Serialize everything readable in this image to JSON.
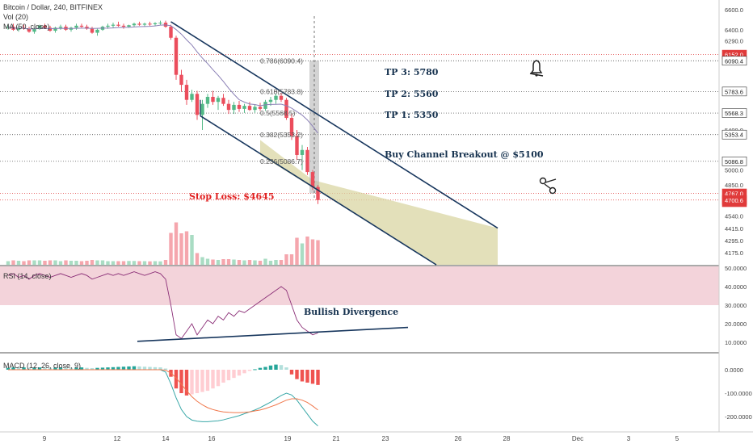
{
  "title": "Bitcoin / Dollar, 240, BITFINEX",
  "legend": {
    "vol": "Vol (20)",
    "ma": "MA (50, close)",
    "rsi": "RSI (14, close)",
    "macd": "MACD (12, 26, close, 9)"
  },
  "colors": {
    "up": "#53b987",
    "down": "#eb4d5c",
    "ma": "#8a7fb5",
    "channel": "#17365d",
    "fill": "#d9d6a3",
    "rsi_band": "#f2cfd6",
    "rsi_line": "#8b2f77",
    "macd_line": "#3aa8a8",
    "signal_line": "#f0774b"
  },
  "price_axis": {
    "ticks": [
      "6600.0",
      "6400.0",
      "6290.0",
      "6152.0",
      "6090.4",
      "5783.6",
      "5568.3",
      "5400.0",
      "5353.4",
      "5086.8",
      "5000.0",
      "4850.0",
      "4767.0",
      "32:47",
      "4700.6",
      "4540.0",
      "4415.0",
      "4295.0",
      "4175.0"
    ]
  },
  "rsi_axis": {
    "ticks": [
      "50.0000",
      "40.0000",
      "30.0000",
      "20.0000",
      "10.0000"
    ]
  },
  "macd_axis": {
    "ticks": [
      "0.0000",
      "-100.0000",
      "-200.0000"
    ]
  },
  "x_axis": {
    "ticks": [
      "9",
      "12",
      "14",
      "16",
      "19",
      "21",
      "23",
      "26",
      "28",
      "Dec",
      "3",
      "5"
    ]
  },
  "annotations": {
    "tp3": "TP 3: 5780",
    "tp2": "TP 2: 5560",
    "tp1": "TP 1: 5350",
    "breakout": "Buy Channel Breakout @ $5100",
    "stop": "Stop Loss: $4645",
    "divergence": "Bullish Divergence"
  },
  "fib_levels": [
    {
      "label": "0.786(6090.4)",
      "price": 6090.4
    },
    {
      "label": "0.618(5783.8)",
      "price": 5783.8
    },
    {
      "label": "0.5(5568.5)",
      "price": 5568.5
    },
    {
      "label": "0.382(5353.2)",
      "price": 5353.2
    },
    {
      "label": "0.236(5086.7)",
      "price": 5086.7
    }
  ],
  "chart_data": [
    {
      "type": "candlestick",
      "title": "Bitcoin / Dollar, 240, BITFINEX",
      "ylim": [
        4100,
        6700
      ],
      "horizontal_levels": [
        6152.0,
        6090.4,
        5783.6,
        5568.3,
        5353.4,
        5086.8,
        4767.0,
        4700.6
      ],
      "candles": [
        [
          6420,
          6450,
          6400,
          6430
        ],
        [
          6430,
          6460,
          6390,
          6400
        ],
        [
          6400,
          6440,
          6380,
          6420
        ],
        [
          6420,
          6450,
          6400,
          6410
        ],
        [
          6410,
          6430,
          6370,
          6380
        ],
        [
          6380,
          6420,
          6360,
          6410
        ],
        [
          6410,
          6450,
          6400,
          6440
        ],
        [
          6440,
          6460,
          6410,
          6420
        ],
        [
          6420,
          6440,
          6380,
          6390
        ],
        [
          6390,
          6430,
          6370,
          6420
        ],
        [
          6420,
          6450,
          6400,
          6430
        ],
        [
          6430,
          6450,
          6390,
          6400
        ],
        [
          6400,
          6430,
          6380,
          6420
        ],
        [
          6420,
          6460,
          6400,
          6440
        ],
        [
          6440,
          6460,
          6420,
          6430
        ],
        [
          6430,
          6450,
          6400,
          6410
        ],
        [
          6410,
          6430,
          6360,
          6370
        ],
        [
          6370,
          6410,
          6340,
          6400
        ],
        [
          6400,
          6440,
          6390,
          6430
        ],
        [
          6430,
          6460,
          6410,
          6440
        ],
        [
          6440,
          6470,
          6420,
          6450
        ],
        [
          6450,
          6480,
          6430,
          6440
        ],
        [
          6440,
          6460,
          6410,
          6430
        ],
        [
          6430,
          6450,
          6420,
          6445
        ],
        [
          6445,
          6470,
          6430,
          6460
        ],
        [
          6460,
          6480,
          6440,
          6450
        ],
        [
          6450,
          6470,
          6430,
          6460
        ],
        [
          6460,
          6480,
          6440,
          6455
        ],
        [
          6455,
          6475,
          6440,
          6465
        ],
        [
          6465,
          6490,
          6450,
          6470
        ],
        [
          6470,
          6490,
          6420,
          6430
        ],
        [
          6430,
          6450,
          6300,
          6320
        ],
        [
          6320,
          6340,
          5900,
          5950
        ],
        [
          5950,
          6000,
          5780,
          5850
        ],
        [
          5850,
          5900,
          5650,
          5700
        ],
        [
          5700,
          5800,
          5680,
          5760
        ],
        [
          5760,
          5790,
          5500,
          5550
        ],
        [
          5550,
          5700,
          5400,
          5660
        ],
        [
          5660,
          5760,
          5620,
          5730
        ],
        [
          5730,
          5790,
          5650,
          5680
        ],
        [
          5680,
          5740,
          5600,
          5720
        ],
        [
          5720,
          5760,
          5640,
          5660
        ],
        [
          5660,
          5700,
          5560,
          5600
        ],
        [
          5600,
          5680,
          5560,
          5650
        ],
        [
          5650,
          5690,
          5580,
          5610
        ],
        [
          5610,
          5660,
          5570,
          5640
        ],
        [
          5640,
          5680,
          5590,
          5600
        ],
        [
          5600,
          5650,
          5570,
          5630
        ],
        [
          5630,
          5670,
          5590,
          5610
        ],
        [
          5610,
          5700,
          5590,
          5680
        ],
        [
          5680,
          5730,
          5640,
          5700
        ],
        [
          5700,
          5760,
          5660,
          5740
        ],
        [
          5740,
          5770,
          5680,
          5700
        ],
        [
          5700,
          5720,
          5500,
          5520
        ],
        [
          5520,
          5560,
          5300,
          5340
        ],
        [
          5340,
          5400,
          5100,
          5150
        ],
        [
          5150,
          5250,
          5000,
          5200
        ],
        [
          5200,
          5230,
          4950,
          4980
        ],
        [
          4980,
          5000,
          4800,
          4830
        ],
        [
          4830,
          4850,
          4660,
          4700
        ]
      ],
      "volume_scale_note": "",
      "rsi": [
        46,
        47,
        45,
        46,
        44,
        46,
        47,
        46,
        45,
        46,
        47,
        46,
        45,
        46,
        47,
        46,
        44,
        45,
        46,
        47,
        46,
        47,
        46,
        47,
        48,
        47,
        46,
        47,
        48,
        47,
        44,
        30,
        14,
        12,
        16,
        20,
        14,
        18,
        22,
        20,
        24,
        22,
        26,
        24,
        27,
        26,
        28,
        30,
        32,
        34,
        36,
        38,
        40,
        38,
        30,
        22,
        18,
        16,
        14,
        15
      ],
      "macd_hist": [
        8,
        10,
        9,
        10,
        8,
        9,
        10,
        9,
        8,
        9,
        10,
        9,
        8,
        9,
        10,
        8,
        7,
        8,
        9,
        10,
        11,
        12,
        13,
        14,
        15,
        14,
        13,
        12,
        11,
        10,
        5,
        -30,
        -80,
        -100,
        -110,
        -105,
        -100,
        -95,
        -90,
        -80,
        -70,
        -55,
        -45,
        -35,
        -25,
        -15,
        -5,
        2,
        8,
        12,
        18,
        22,
        20,
        10,
        -20,
        -40,
        -50,
        -55,
        -60,
        -65
      ],
      "macd_line": [
        0,
        0,
        0,
        0,
        0,
        0,
        0,
        0,
        0,
        0,
        0,
        0,
        0,
        0,
        0,
        0,
        0,
        0,
        0,
        0,
        0,
        0,
        0,
        0,
        0,
        0,
        0,
        0,
        0,
        0,
        -10,
        -60,
        -120,
        -170,
        -200,
        -215,
        -220,
        -222,
        -222,
        -220,
        -218,
        -214,
        -208,
        -202,
        -196,
        -188,
        -180,
        -172,
        -162,
        -150,
        -138,
        -124,
        -110,
        -100,
        -108,
        -130,
        -160,
        -190,
        -220,
        -240
      ],
      "signal_line": [
        0,
        0,
        0,
        0,
        0,
        0,
        0,
        0,
        0,
        0,
        0,
        0,
        0,
        0,
        0,
        0,
        0,
        0,
        0,
        0,
        0,
        0,
        0,
        0,
        0,
        0,
        0,
        0,
        0,
        0,
        -2,
        -14,
        -35,
        -62,
        -90,
        -115,
        -135,
        -150,
        -162,
        -170,
        -176,
        -180,
        -182,
        -183,
        -183,
        -182,
        -180,
        -176,
        -172,
        -166,
        -158,
        -150,
        -140,
        -130,
        -124,
        -124,
        -130,
        -140,
        -155,
        -172
      ]
    }
  ]
}
